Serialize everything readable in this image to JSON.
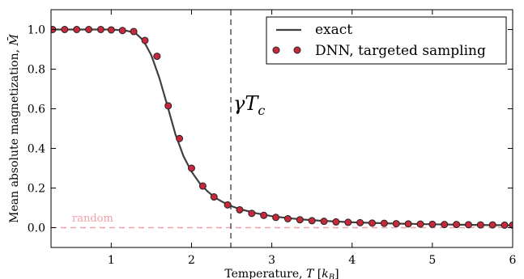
{
  "chart_data": {
    "type": "line",
    "title": "",
    "xlabel": "Temperature, T [k_B]",
    "ylabel": "Mean absolute magnetization, M̄",
    "xlim": [
      0.25,
      6.0
    ],
    "ylim": [
      -0.1,
      1.1
    ],
    "xticks": [
      1,
      2,
      3,
      4,
      5,
      6
    ],
    "xtick_labels": [
      "1",
      "2",
      "3",
      "4",
      "5",
      "6"
    ],
    "yticks": [
      0.0,
      0.2,
      0.4,
      0.6,
      0.8,
      1.0
    ],
    "ytick_labels": [
      "0.0",
      "0.2",
      "0.4",
      "0.6",
      "0.8",
      "1.0"
    ],
    "grid": false,
    "legend": {
      "placement": "top-right"
    },
    "colors": {
      "exact": "#404040",
      "dnn_fill": "#c8283c",
      "dnn_edge": "#222222",
      "random": "#f0a0a8",
      "vline": "#555555"
    },
    "series": [
      {
        "name": "exact",
        "style": "line",
        "x": [
          0.25,
          0.4,
          0.55,
          0.7,
          0.85,
          1.0,
          1.1,
          1.2,
          1.3,
          1.4,
          1.5,
          1.6,
          1.7,
          1.8,
          1.9,
          2.0,
          2.1,
          2.2,
          2.3,
          2.4,
          2.5,
          2.6,
          2.8,
          3.0,
          3.2,
          3.4,
          3.6,
          3.8,
          4.0,
          4.5,
          5.0,
          5.5,
          6.0
        ],
        "y": [
          1.0,
          1.0,
          1.0,
          1.0,
          1.0,
          1.0,
          0.997,
          0.993,
          0.983,
          0.945,
          0.87,
          0.755,
          0.615,
          0.47,
          0.36,
          0.283,
          0.225,
          0.183,
          0.15,
          0.127,
          0.108,
          0.094,
          0.073,
          0.058,
          0.048,
          0.041,
          0.035,
          0.031,
          0.027,
          0.021,
          0.017,
          0.014,
          0.012
        ]
      },
      {
        "name": "DNN, targeted sampling",
        "style": "markers",
        "x": [
          0.27,
          0.42,
          0.57,
          0.72,
          0.87,
          1.0,
          1.14,
          1.28,
          1.42,
          1.57,
          1.71,
          1.85,
          2.0,
          2.14,
          2.28,
          2.45,
          2.6,
          2.75,
          2.9,
          3.05,
          3.2,
          3.35,
          3.5,
          3.65,
          3.8,
          3.95,
          4.1,
          4.25,
          4.4,
          4.55,
          4.7,
          4.85,
          5.0,
          5.15,
          5.3,
          5.45,
          5.6,
          5.75,
          5.9,
          6.0
        ],
        "y": [
          1.0,
          1.0,
          1.0,
          1.0,
          1.0,
          0.998,
          0.995,
          0.99,
          0.945,
          0.865,
          0.615,
          0.45,
          0.3,
          0.21,
          0.155,
          0.115,
          0.09,
          0.072,
          0.062,
          0.052,
          0.045,
          0.04,
          0.035,
          0.032,
          0.029,
          0.027,
          0.025,
          0.023,
          0.022,
          0.02,
          0.019,
          0.018,
          0.017,
          0.016,
          0.016,
          0.015,
          0.014,
          0.014,
          0.013,
          0.013
        ]
      },
      {
        "name": "random",
        "style": "dashed",
        "x": [
          0.25,
          6.0
        ],
        "y": [
          0.0,
          0.0
        ]
      }
    ],
    "annotations": [
      {
        "text": "γT_c",
        "kind": "vertical-line",
        "x": 2.49
      },
      {
        "text": "random",
        "kind": "series-label",
        "x": 0.5,
        "y": 0.03
      }
    ]
  }
}
